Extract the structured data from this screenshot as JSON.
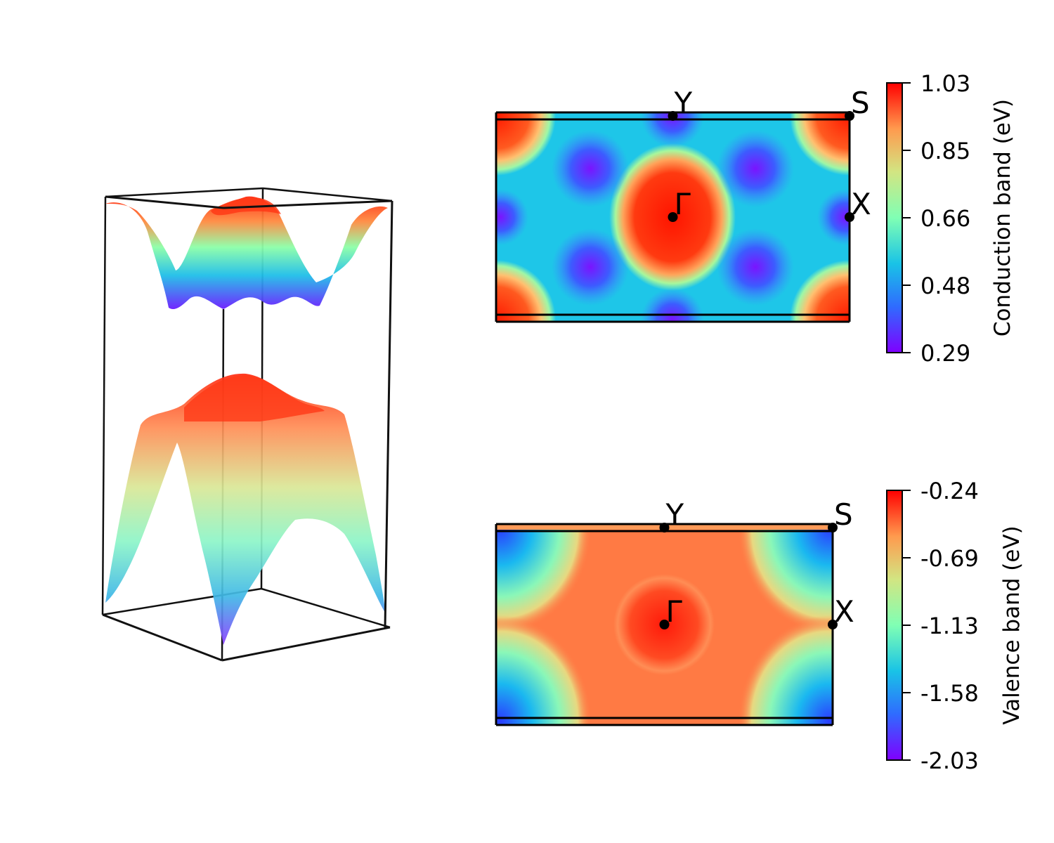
{
  "chart_data": [
    {
      "type": "surface3d",
      "description_bands": [
        "conduction",
        "valence"
      ],
      "grid": false,
      "axes_visible": false,
      "colormap": "rainbow"
    },
    {
      "type": "heatmap",
      "band": "conduction",
      "colormap": "rainbow",
      "colorbar": {
        "label": "Conduction band (eV)",
        "ticks": [
          "1.03",
          "0.85",
          "0.66",
          "0.48",
          "0.29"
        ],
        "range": [
          0.29,
          1.03
        ]
      },
      "kpoints": [
        {
          "label": "Y",
          "kx": 0.0,
          "ky": 0.5
        },
        {
          "label": "S",
          "kx": 0.5,
          "ky": 0.5
        },
        {
          "label": "X",
          "kx": 0.5,
          "ky": 0.0
        },
        {
          "label": "Γ",
          "kx": 0.0,
          "ky": 0.0
        }
      ]
    },
    {
      "type": "heatmap",
      "band": "valence",
      "colormap": "rainbow",
      "colorbar": {
        "label": "Valence band (eV)",
        "ticks": [
          "-0.24",
          "-0.69",
          "-1.13",
          "-1.58",
          "-2.03"
        ],
        "range": [
          -2.03,
          -0.24
        ]
      },
      "kpoints": [
        {
          "label": "Y",
          "kx": 0.0,
          "ky": 0.5
        },
        {
          "label": "S",
          "kx": 0.5,
          "ky": 0.5
        },
        {
          "label": "X",
          "kx": 0.5,
          "ky": 0.0
        },
        {
          "label": "Γ",
          "kx": 0.0,
          "ky": 0.0
        }
      ]
    }
  ]
}
